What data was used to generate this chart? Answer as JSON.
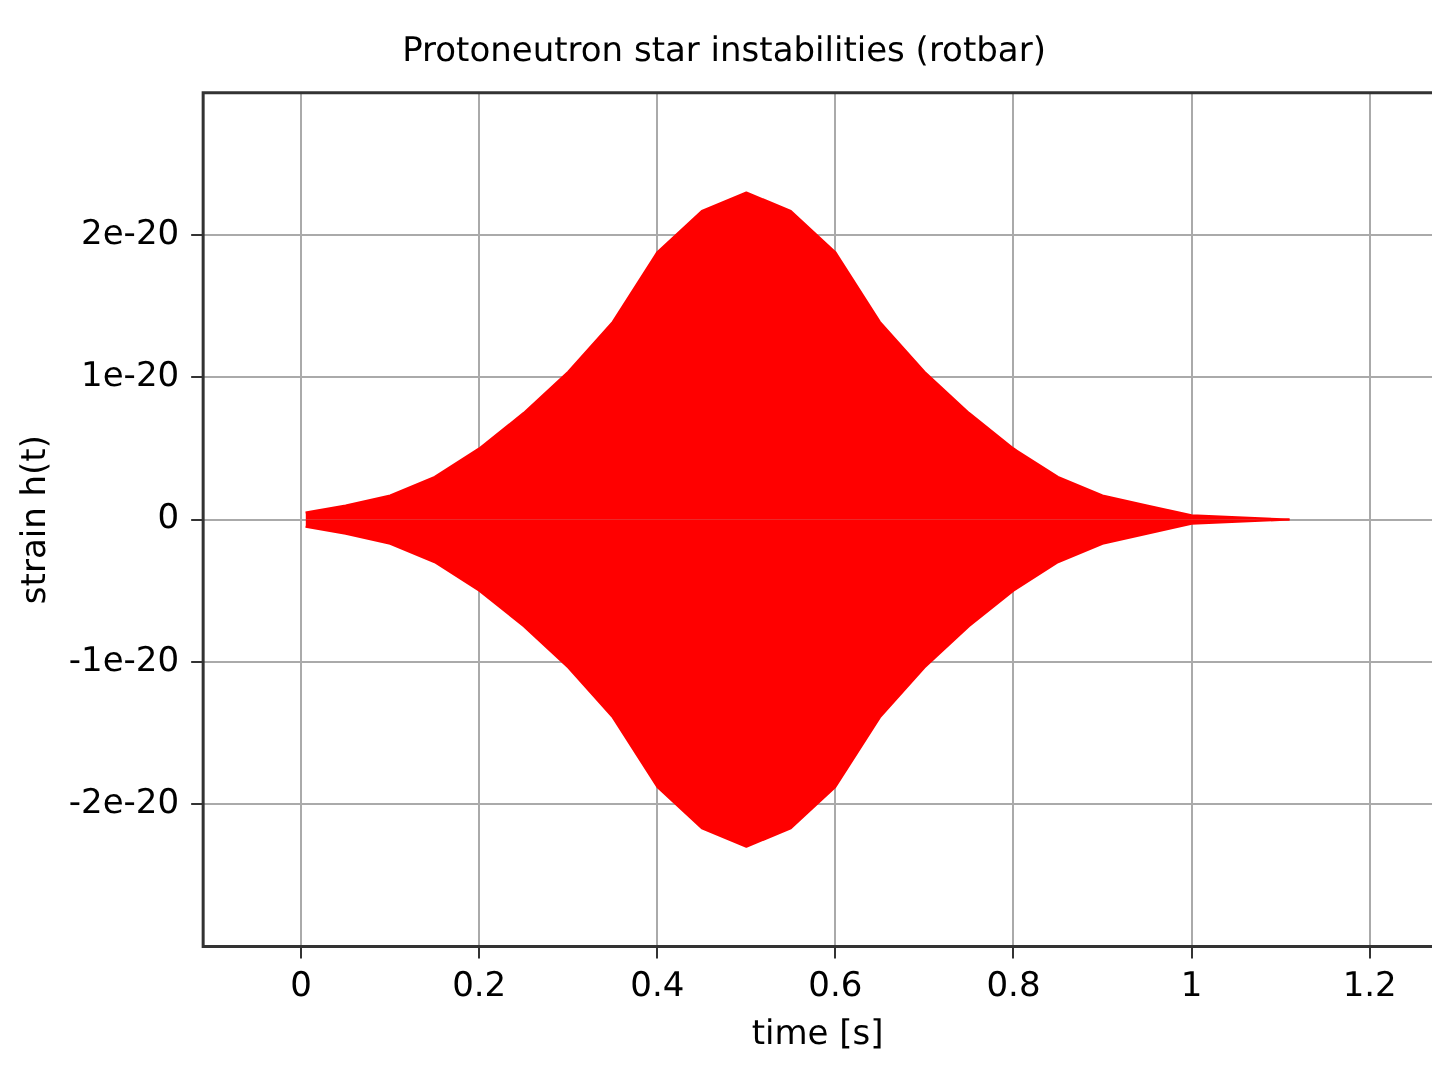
{
  "chart_data": {
    "type": "area",
    "title": "Protoneutron star instabilities (rotbar)",
    "xlabel": "time [s]",
    "ylabel": "strain h(t)",
    "x": [
      0.005,
      0.05,
      0.1,
      0.15,
      0.2,
      0.25,
      0.3,
      0.35,
      0.4,
      0.45,
      0.5,
      0.55,
      0.6,
      0.65,
      0.7,
      0.75,
      0.8,
      0.85,
      0.9,
      0.95,
      1.0,
      1.11
    ],
    "series": [
      {
        "color": "#ff0000",
        "values": [
          5e-22,
          1e-21,
          1.7e-21,
          3e-21,
          5e-21,
          7.5e-21,
          1.04e-20,
          1.39e-20,
          1.88e-20,
          2.17e-20,
          2.3e-20,
          2.17e-20,
          1.88e-20,
          1.39e-20,
          1.04e-20,
          7.5e-21,
          5e-21,
          3e-21,
          1.7e-21,
          1e-21,
          3e-22,
          0
        ]
      },
      {
        "color": "#ff0000",
        "values": [
          -5e-22,
          -1e-21,
          -1.7e-21,
          -3e-21,
          -5e-21,
          -7.5e-21,
          -1.04e-20,
          -1.39e-20,
          -1.88e-20,
          -2.17e-20,
          -2.3e-20,
          -2.17e-20,
          -1.88e-20,
          -1.39e-20,
          -1.04e-20,
          -7.5e-21,
          -5e-21,
          -3e-21,
          -1.7e-21,
          -1e-21,
          -3e-22,
          0
        ]
      }
    ],
    "xlim": [
      -0.11,
      1.27
    ],
    "xticks": [
      0,
      0.2,
      0.4,
      0.6,
      0.8,
      1,
      1.2
    ],
    "ylim": [
      -3e-20,
      3e-20
    ],
    "yticks": [
      {
        "value": -2e-20,
        "label": "-2e-20"
      },
      {
        "value": -1e-20,
        "label": "-1e-20"
      },
      0,
      {
        "value": 1e-20,
        "label": "1e-20"
      },
      {
        "value": 2e-20,
        "label": "2e-20"
      }
    ],
    "grid": true,
    "legend": false
  }
}
